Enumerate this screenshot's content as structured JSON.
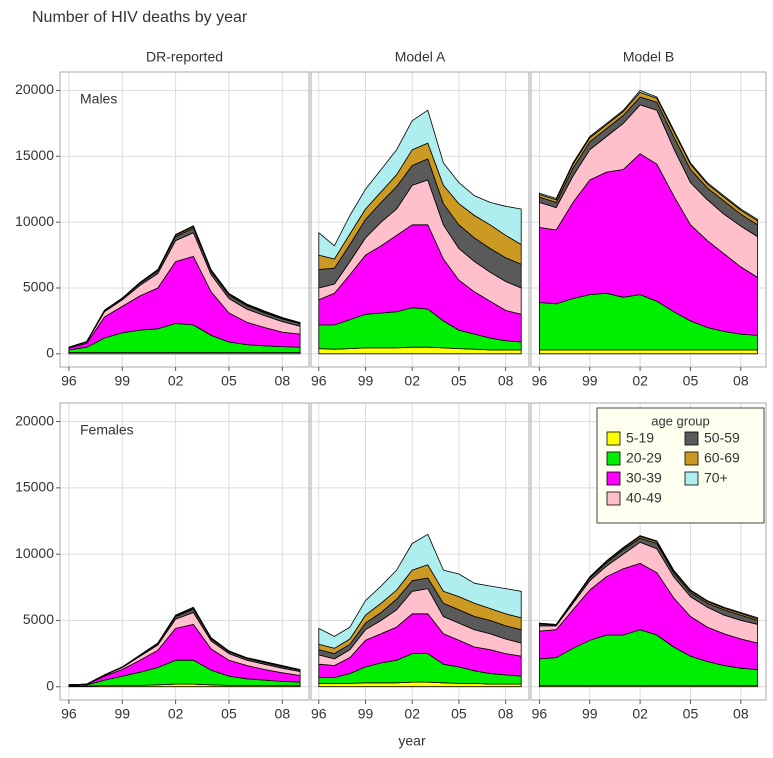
{
  "chart_data": {
    "type": "stacked-area",
    "title": "Number of HIV deaths by year",
    "xlabel": "year",
    "columns": [
      "DR-reported",
      "Model A",
      "Model B"
    ],
    "rows": [
      "Males",
      "Females"
    ],
    "x": [
      1996,
      1997,
      1998,
      1999,
      2000,
      2001,
      2002,
      2003,
      2004,
      2005,
      2006,
      2007,
      2008,
      2009
    ],
    "xlim": [
      1995.5,
      2009.5
    ],
    "xticks": [
      {
        "value": 1996,
        "label": "96"
      },
      {
        "value": 1999,
        "label": "99"
      },
      {
        "value": 2002,
        "label": "02"
      },
      {
        "value": 2005,
        "label": "05"
      },
      {
        "value": 2008,
        "label": "08"
      }
    ],
    "ylim": [
      -1000,
      21400
    ],
    "yticks": [
      0,
      5000,
      10000,
      15000,
      20000
    ],
    "grid": true,
    "legend_title": "age group",
    "legend_position": "top-right",
    "series": [
      {
        "name": "5-19",
        "color": "#ffff00"
      },
      {
        "name": "20-29",
        "color": "#00ee00"
      },
      {
        "name": "30-39",
        "color": "#ff00ff"
      },
      {
        "name": "40-49",
        "color": "#ffc0cb"
      },
      {
        "name": "50-59",
        "color": "#5a5a5a"
      },
      {
        "name": "60-69",
        "color": "#cc9a22"
      },
      {
        "name": "70+",
        "color": "#aeeeee"
      }
    ],
    "panels": [
      {
        "values": [
          [
            100,
            100,
            100,
            100,
            100,
            100,
            100,
            100,
            100,
            100,
            100,
            100,
            100,
            100
          ],
          [
            200,
            400,
            1100,
            1500,
            1700,
            1800,
            2200,
            2100,
            1300,
            800,
            600,
            500,
            450,
            400
          ],
          [
            150,
            300,
            1600,
            2000,
            2600,
            3100,
            4700,
            5200,
            3300,
            2200,
            1700,
            1400,
            1100,
            1000
          ],
          [
            40,
            100,
            400,
            500,
            800,
            1100,
            1600,
            1800,
            1300,
            1100,
            1000,
            900,
            800,
            600
          ],
          [
            10,
            20,
            80,
            100,
            150,
            200,
            300,
            350,
            250,
            250,
            250,
            220,
            200,
            180
          ],
          [
            5,
            10,
            20,
            30,
            50,
            60,
            100,
            120,
            80,
            80,
            80,
            80,
            70,
            60
          ],
          [
            5,
            10,
            20,
            20,
            30,
            40,
            60,
            60,
            50,
            50,
            50,
            50,
            40,
            40
          ]
        ]
      },
      {
        "values": [
          [
            400,
            350,
            400,
            450,
            450,
            450,
            500,
            500,
            450,
            400,
            350,
            300,
            300,
            300
          ],
          [
            1800,
            1850,
            2200,
            2550,
            2650,
            2750,
            3000,
            2900,
            2050,
            1400,
            1150,
            900,
            700,
            600
          ],
          [
            1900,
            2400,
            3400,
            4500,
            5100,
            5800,
            6300,
            6400,
            4700,
            3800,
            3200,
            2800,
            2300,
            2100
          ],
          [
            900,
            700,
            1000,
            1300,
            1800,
            2000,
            3000,
            3400,
            2600,
            2400,
            2300,
            2200,
            2200,
            2000
          ],
          [
            1400,
            1200,
            1300,
            1400,
            1500,
            1700,
            1500,
            1600,
            1600,
            1800,
            1800,
            1800,
            1800,
            1800
          ],
          [
            1100,
            700,
            800,
            800,
            800,
            900,
            1200,
            1200,
            1400,
            1600,
            1700,
            1800,
            1700,
            1500
          ],
          [
            1700,
            1000,
            1400,
            1500,
            1700,
            1900,
            2200,
            2500,
            1700,
            1600,
            1500,
            1700,
            2200,
            2700
          ]
        ]
      },
      {
        "values": [
          [
            300,
            300,
            300,
            300,
            300,
            300,
            300,
            300,
            300,
            300,
            300,
            300,
            300,
            300
          ],
          [
            3600,
            3500,
            3900,
            4200,
            4300,
            4000,
            4200,
            3700,
            2900,
            2200,
            1700,
            1400,
            1200,
            1100
          ],
          [
            5700,
            5600,
            7300,
            8700,
            9200,
            9700,
            10700,
            10400,
            8800,
            7300,
            6600,
            5900,
            5100,
            4400
          ],
          [
            1900,
            1700,
            2000,
            2300,
            2700,
            3500,
            3700,
            4100,
            3600,
            3200,
            3100,
            3000,
            3100,
            3100
          ],
          [
            400,
            400,
            600,
            600,
            600,
            600,
            600,
            600,
            900,
            1000,
            900,
            1000,
            900,
            900
          ],
          [
            200,
            200,
            300,
            300,
            300,
            300,
            350,
            300,
            400,
            400,
            300,
            300,
            300,
            300
          ],
          [
            100,
            100,
            100,
            100,
            100,
            100,
            150,
            100,
            100,
            100,
            100,
            100,
            100,
            100
          ]
        ]
      },
      {
        "values": [
          [
            50,
            50,
            100,
            100,
            100,
            150,
            200,
            200,
            150,
            100,
            100,
            100,
            100,
            100
          ],
          [
            50,
            80,
            400,
            700,
            1000,
            1300,
            1800,
            1800,
            1100,
            700,
            500,
            400,
            300,
            250
          ],
          [
            40,
            50,
            300,
            500,
            900,
            1300,
            2400,
            2700,
            1600,
            1200,
            1000,
            800,
            650,
            500
          ],
          [
            10,
            15,
            70,
            150,
            300,
            400,
            700,
            900,
            600,
            500,
            400,
            400,
            350,
            300
          ],
          [
            0,
            5,
            20,
            30,
            60,
            100,
            200,
            250,
            150,
            130,
            130,
            120,
            120,
            100
          ],
          [
            0,
            0,
            5,
            10,
            20,
            30,
            60,
            80,
            60,
            40,
            40,
            50,
            50,
            30
          ],
          [
            0,
            0,
            5,
            10,
            20,
            20,
            40,
            70,
            40,
            30,
            30,
            30,
            30,
            20
          ]
        ]
      },
      {
        "values": [
          [
            250,
            250,
            250,
            300,
            300,
            300,
            350,
            350,
            300,
            250,
            250,
            200,
            200,
            200
          ],
          [
            450,
            450,
            750,
            1200,
            1500,
            1700,
            2150,
            2150,
            1400,
            1250,
            950,
            800,
            700,
            600
          ],
          [
            1000,
            900,
            1200,
            2000,
            2200,
            2500,
            3000,
            3000,
            2300,
            2000,
            1800,
            1800,
            1600,
            1500
          ],
          [
            700,
            500,
            600,
            800,
            1000,
            1300,
            1700,
            1900,
            1300,
            1300,
            1300,
            1200,
            1100,
            1000
          ],
          [
            400,
            400,
            400,
            500,
            600,
            800,
            800,
            800,
            1000,
            1000,
            1000,
            1000,
            1000,
            1000
          ],
          [
            400,
            400,
            400,
            600,
            700,
            700,
            800,
            1000,
            900,
            1000,
            1000,
            900,
            900,
            900
          ],
          [
            1200,
            900,
            900,
            1100,
            1300,
            1500,
            2000,
            2300,
            1600,
            1700,
            1500,
            1700,
            1900,
            2000
          ]
        ]
      },
      {
        "values": [
          [
            100,
            100,
            100,
            100,
            100,
            100,
            100,
            100,
            100,
            100,
            100,
            100,
            100,
            100
          ],
          [
            2000,
            2100,
            2800,
            3400,
            3800,
            3800,
            4200,
            3800,
            2900,
            2200,
            1800,
            1500,
            1300,
            1200
          ],
          [
            2100,
            2100,
            2900,
            3800,
            4400,
            5000,
            5000,
            4700,
            3700,
            3000,
            2600,
            2400,
            2200,
            2000
          ],
          [
            400,
            300,
            500,
            700,
            800,
            1100,
            1600,
            1800,
            1600,
            1500,
            1500,
            1400,
            1400,
            1400
          ],
          [
            150,
            50,
            100,
            200,
            250,
            350,
            300,
            400,
            300,
            300,
            300,
            400,
            400,
            300
          ],
          [
            40,
            40,
            70,
            70,
            100,
            100,
            130,
            130,
            130,
            130,
            130,
            130,
            130,
            130
          ],
          [
            10,
            10,
            30,
            30,
            50,
            50,
            70,
            70,
            70,
            70,
            70,
            70,
            70,
            70
          ]
        ]
      }
    ]
  }
}
